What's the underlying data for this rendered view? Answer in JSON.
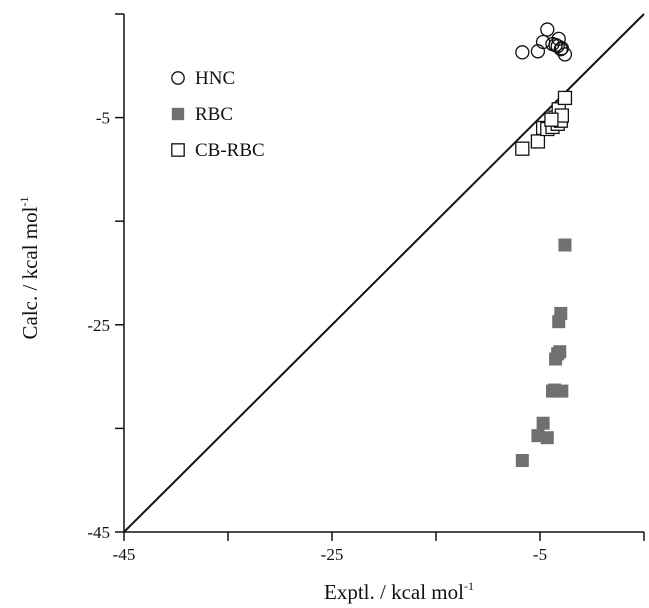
{
  "chart_data": {
    "type": "scatter",
    "title": "",
    "xlabel": "Exptl. / kcal mol",
    "xlabel_sup": "-1",
    "ylabel": "Calc. / kcal mol",
    "ylabel_sup": "-1",
    "xlim": [
      -45,
      5
    ],
    "ylim": [
      -45,
      5
    ],
    "xticks": [
      -45,
      -25,
      -5
    ],
    "yticks": [
      -45,
      -25,
      -5
    ],
    "xtick_labels": [
      "-45",
      "-25",
      "-5"
    ],
    "ytick_labels": [
      "-45",
      "-25",
      "-5"
    ],
    "grid": false,
    "legend_position": "top-left",
    "reference_line": {
      "from": [
        -45,
        -45
      ],
      "to": [
        5,
        5
      ]
    },
    "colors": {
      "axis": "#111111",
      "rbc_fill": "#707070",
      "open_marker_stroke": "#111111"
    },
    "series": [
      {
        "name": "HNC",
        "marker": "open-circle",
        "points": [
          [
            -6.7,
            1.3
          ],
          [
            -5.2,
            1.4
          ],
          [
            -4.7,
            2.3
          ],
          [
            -4.3,
            3.5
          ],
          [
            -3.8,
            2.1
          ],
          [
            -3.5,
            2.0
          ],
          [
            -3.3,
            1.9
          ],
          [
            -3.2,
            2.6
          ],
          [
            -3.0,
            1.6
          ],
          [
            -2.9,
            1.7
          ],
          [
            -2.6,
            1.1
          ]
        ]
      },
      {
        "name": "RBC",
        "marker": "filled-square",
        "points": [
          [
            -6.7,
            -38.1
          ],
          [
            -5.2,
            -35.7
          ],
          [
            -4.7,
            -34.5
          ],
          [
            -4.3,
            -35.9
          ],
          [
            -3.8,
            -31.4
          ],
          [
            -3.5,
            -28.3
          ],
          [
            -3.3,
            -27.8
          ],
          [
            -3.2,
            -24.7
          ],
          [
            -3.0,
            -23.9
          ],
          [
            -2.9,
            -31.4
          ],
          [
            -2.6,
            -17.3
          ],
          [
            -3.6,
            -31.3
          ],
          [
            -3.1,
            -27.6
          ]
        ]
      },
      {
        "name": "CB-RBC",
        "marker": "open-square",
        "points": [
          [
            -6.7,
            -8.0
          ],
          [
            -5.2,
            -7.3
          ],
          [
            -4.7,
            -6.0
          ],
          [
            -4.3,
            -6.1
          ],
          [
            -3.8,
            -5.9
          ],
          [
            -3.5,
            -5.0
          ],
          [
            -3.3,
            -5.6
          ],
          [
            -3.2,
            -4.2
          ],
          [
            -3.0,
            -5.3
          ],
          [
            -2.9,
            -4.8
          ],
          [
            -2.6,
            -3.1
          ],
          [
            -3.9,
            -5.2
          ]
        ]
      }
    ]
  }
}
